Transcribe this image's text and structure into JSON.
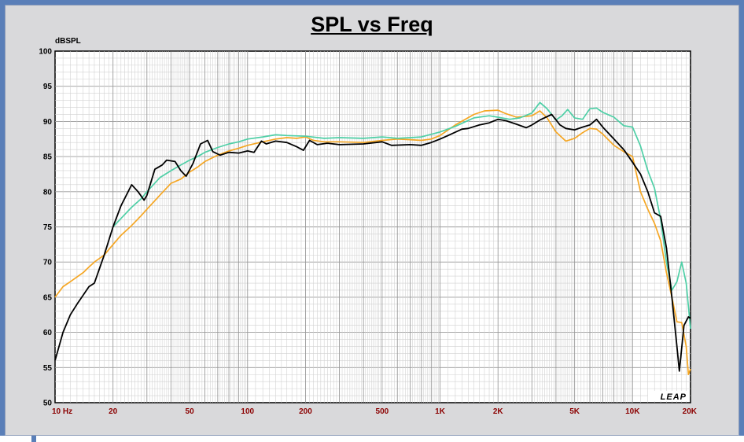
{
  "chart_data": {
    "type": "line",
    "title": "SPL vs Freq",
    "ylabel": "dBSPL",
    "xlabel": "",
    "x_scale": "log",
    "xlim": [
      10,
      20000
    ],
    "ylim": [
      50,
      100
    ],
    "grid": true,
    "y_ticks": [
      50,
      55,
      60,
      65,
      70,
      75,
      80,
      85,
      90,
      95,
      100
    ],
    "x_tick_labels": [
      {
        "value": 10,
        "label": "10  Hz"
      },
      {
        "value": 20,
        "label": "20"
      },
      {
        "value": 50,
        "label": "50"
      },
      {
        "value": 100,
        "label": "100"
      },
      {
        "value": 200,
        "label": "200"
      },
      {
        "value": 500,
        "label": "500"
      },
      {
        "value": 1000,
        "label": "1K"
      },
      {
        "value": 2000,
        "label": "2K"
      },
      {
        "value": 5000,
        "label": "5K"
      },
      {
        "value": 10000,
        "label": "10K"
      },
      {
        "value": 20000,
        "label": "20K"
      }
    ],
    "logo_text": "LEAP",
    "series": [
      {
        "color": "#000000",
        "points": [
          [
            10,
            56
          ],
          [
            11,
            60
          ],
          [
            12,
            62.5
          ],
          [
            13,
            64
          ],
          [
            15,
            66.5
          ],
          [
            16,
            67
          ],
          [
            18,
            71
          ],
          [
            20,
            75
          ],
          [
            22,
            78
          ],
          [
            25,
            81
          ],
          [
            27,
            80
          ],
          [
            29,
            78.8
          ],
          [
            30,
            79.5
          ],
          [
            33,
            83.2
          ],
          [
            36,
            83.8
          ],
          [
            38,
            84.5
          ],
          [
            42,
            84.3
          ],
          [
            45,
            83
          ],
          [
            48,
            82.2
          ],
          [
            52,
            84
          ],
          [
            57,
            86.8
          ],
          [
            62,
            87.3
          ],
          [
            66,
            85.7
          ],
          [
            72,
            85.2
          ],
          [
            80,
            85.6
          ],
          [
            90,
            85.5
          ],
          [
            100,
            85.8
          ],
          [
            108,
            85.6
          ],
          [
            118,
            87.2
          ],
          [
            125,
            86.8
          ],
          [
            140,
            87.2
          ],
          [
            160,
            87
          ],
          [
            180,
            86.4
          ],
          [
            195,
            85.9
          ],
          [
            210,
            87.3
          ],
          [
            230,
            86.7
          ],
          [
            260,
            86.9
          ],
          [
            300,
            86.7
          ],
          [
            400,
            86.8
          ],
          [
            500,
            87.1
          ],
          [
            560,
            86.6
          ],
          [
            700,
            86.7
          ],
          [
            800,
            86.6
          ],
          [
            900,
            87
          ],
          [
            1000,
            87.5
          ],
          [
            1100,
            88
          ],
          [
            1300,
            88.9
          ],
          [
            1400,
            89
          ],
          [
            1600,
            89.5
          ],
          [
            1800,
            89.8
          ],
          [
            2000,
            90.3
          ],
          [
            2200,
            90.1
          ],
          [
            2500,
            89.6
          ],
          [
            2800,
            89.1
          ],
          [
            3000,
            89.5
          ],
          [
            3300,
            90.2
          ],
          [
            3800,
            91
          ],
          [
            4200,
            89.5
          ],
          [
            4500,
            89
          ],
          [
            5000,
            88.8
          ],
          [
            5500,
            89.2
          ],
          [
            6000,
            89.5
          ],
          [
            6500,
            90.3
          ],
          [
            7000,
            89.2
          ],
          [
            8000,
            87.5
          ],
          [
            9000,
            86
          ],
          [
            10000,
            84.2
          ],
          [
            11000,
            82.5
          ],
          [
            12000,
            80
          ],
          [
            13000,
            77
          ],
          [
            14000,
            76.5
          ],
          [
            15000,
            72
          ],
          [
            16000,
            65
          ],
          [
            17000,
            58
          ],
          [
            17500,
            54.5
          ],
          [
            18500,
            61
          ],
          [
            19500,
            62.2
          ],
          [
            20000,
            62
          ]
        ]
      },
      {
        "color": "#f5a623",
        "points": [
          [
            10,
            65
          ],
          [
            11,
            66.5
          ],
          [
            12,
            67.2
          ],
          [
            14,
            68.5
          ],
          [
            15,
            69.3
          ],
          [
            16,
            70
          ],
          [
            18,
            71
          ],
          [
            20,
            72.5
          ],
          [
            22,
            73.8
          ],
          [
            25,
            75.2
          ],
          [
            28,
            76.6
          ],
          [
            30,
            77.5
          ],
          [
            35,
            79.5
          ],
          [
            40,
            81.2
          ],
          [
            45,
            81.8
          ],
          [
            50,
            82.8
          ],
          [
            55,
            83.5
          ],
          [
            60,
            84.3
          ],
          [
            70,
            85.2
          ],
          [
            80,
            85.8
          ],
          [
            90,
            86.2
          ],
          [
            100,
            86.6
          ],
          [
            120,
            87.1
          ],
          [
            140,
            87.5
          ],
          [
            160,
            87.7
          ],
          [
            180,
            87.6
          ],
          [
            200,
            87.8
          ],
          [
            220,
            87.3
          ],
          [
            250,
            87.1
          ],
          [
            300,
            87.1
          ],
          [
            400,
            87
          ],
          [
            500,
            87.3
          ],
          [
            600,
            87.5
          ],
          [
            700,
            87.4
          ],
          [
            800,
            87.3
          ],
          [
            900,
            87.5
          ],
          [
            1000,
            88
          ],
          [
            1200,
            89.5
          ],
          [
            1500,
            91
          ],
          [
            1700,
            91.5
          ],
          [
            2000,
            91.6
          ],
          [
            2200,
            91.1
          ],
          [
            2500,
            90.6
          ],
          [
            3000,
            90.8
          ],
          [
            3300,
            91.5
          ],
          [
            3600,
            90.5
          ],
          [
            4000,
            88.5
          ],
          [
            4500,
            87.2
          ],
          [
            5000,
            87.6
          ],
          [
            5500,
            88.4
          ],
          [
            6000,
            89
          ],
          [
            6500,
            88.9
          ],
          [
            7000,
            88.2
          ],
          [
            8000,
            86.6
          ],
          [
            9000,
            85.7
          ],
          [
            10000,
            85
          ],
          [
            11000,
            80
          ],
          [
            12000,
            77.5
          ],
          [
            13000,
            75.5
          ],
          [
            14000,
            73
          ],
          [
            15000,
            68.5
          ],
          [
            16000,
            65
          ],
          [
            17000,
            61.5
          ],
          [
            18000,
            61.4
          ],
          [
            19000,
            58
          ],
          [
            19500,
            54
          ],
          [
            20000,
            54.8
          ]
        ]
      },
      {
        "color": "#4ecfa6",
        "points": [
          [
            20,
            75
          ],
          [
            22,
            76.2
          ],
          [
            25,
            77.8
          ],
          [
            28,
            79
          ],
          [
            30,
            80
          ],
          [
            35,
            82
          ],
          [
            40,
            83
          ],
          [
            45,
            83.8
          ],
          [
            50,
            84.5
          ],
          [
            55,
            85
          ],
          [
            60,
            85.6
          ],
          [
            70,
            86.3
          ],
          [
            80,
            86.8
          ],
          [
            90,
            87.1
          ],
          [
            100,
            87.5
          ],
          [
            120,
            87.8
          ],
          [
            140,
            88.1
          ],
          [
            160,
            88
          ],
          [
            200,
            87.9
          ],
          [
            250,
            87.6
          ],
          [
            300,
            87.7
          ],
          [
            400,
            87.6
          ],
          [
            500,
            87.8
          ],
          [
            600,
            87.6
          ],
          [
            700,
            87.7
          ],
          [
            800,
            87.8
          ],
          [
            1000,
            88.5
          ],
          [
            1200,
            89.3
          ],
          [
            1500,
            90.5
          ],
          [
            1800,
            90.8
          ],
          [
            2000,
            90.6
          ],
          [
            2300,
            90.3
          ],
          [
            2600,
            90.5
          ],
          [
            3000,
            91.2
          ],
          [
            3300,
            92.7
          ],
          [
            3600,
            91.8
          ],
          [
            4000,
            90.2
          ],
          [
            4300,
            90.8
          ],
          [
            4600,
            91.7
          ],
          [
            5000,
            90.5
          ],
          [
            5500,
            90.3
          ],
          [
            6000,
            91.8
          ],
          [
            6500,
            91.9
          ],
          [
            7000,
            91.3
          ],
          [
            8000,
            90.6
          ],
          [
            9000,
            89.4
          ],
          [
            10000,
            89.2
          ],
          [
            11000,
            86.5
          ],
          [
            12000,
            83
          ],
          [
            13000,
            80.5
          ],
          [
            14000,
            76
          ],
          [
            15000,
            70
          ],
          [
            16000,
            66
          ],
          [
            17000,
            67.2
          ],
          [
            18000,
            70
          ],
          [
            19000,
            67
          ],
          [
            20000,
            60.5
          ]
        ]
      }
    ]
  }
}
